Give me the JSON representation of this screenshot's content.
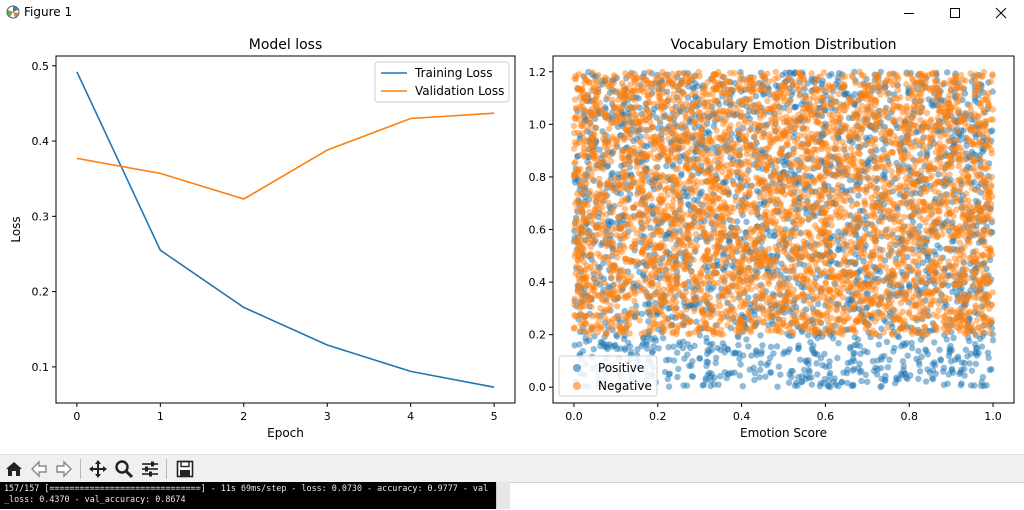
{
  "window": {
    "title": "Figure 1"
  },
  "chart_data": [
    {
      "type": "line",
      "title": "Model loss",
      "xlabel": "Epoch",
      "ylabel": "Loss",
      "x": [
        0,
        1,
        2,
        3,
        4,
        5
      ],
      "xticks": [
        "0",
        "1",
        "2",
        "3",
        "4",
        "5"
      ],
      "yticks": [
        "0.1",
        "0.2",
        "0.3",
        "0.4",
        "0.5"
      ],
      "series": [
        {
          "name": "Training Loss",
          "color": "#1f77b4",
          "values": [
            0.492,
            0.255,
            0.179,
            0.129,
            0.094,
            0.073
          ]
        },
        {
          "name": "Validation Loss",
          "color": "#ff7f0e",
          "values": [
            0.377,
            0.357,
            0.323,
            0.388,
            0.43,
            0.437
          ]
        }
      ],
      "xlim": [
        -0.25,
        5.25
      ],
      "ylim": [
        0.052,
        0.513
      ],
      "legend": "top-right",
      "grid": false
    },
    {
      "type": "scatter",
      "title": "Vocabulary Emotion Distribution",
      "xlabel": "Emotion Score",
      "ylabel": "",
      "xticks": [
        "0.0",
        "0.2",
        "0.4",
        "0.6",
        "0.8",
        "1.0"
      ],
      "yticks": [
        "0.0",
        "0.2",
        "0.4",
        "0.6",
        "0.8",
        "1.0",
        "1.2"
      ],
      "series": [
        {
          "name": "Positive",
          "color": "#1f77b4",
          "x_range": [
            0,
            1
          ],
          "y_range": [
            0,
            1.2
          ]
        },
        {
          "name": "Negative",
          "color": "#ff7f0e",
          "x_range": [
            0,
            1
          ],
          "y_range": [
            0.2,
            1.2
          ]
        }
      ],
      "xlim": [
        -0.05,
        1.05
      ],
      "ylim": [
        -0.06,
        1.26
      ],
      "legend": "bottom-left",
      "grid": false
    }
  ],
  "toolbar": {
    "items": [
      "home-icon",
      "back-icon",
      "forward-icon",
      "pan-icon",
      "zoom-icon",
      "subplots-icon",
      "save-icon"
    ]
  },
  "console": {
    "line1": "157/157 [==============================] - 11s 69ms/step - loss: 0.0730 - accuracy: 0.9777 - val",
    "line2": "_loss: 0.4370 - val_accuracy: 0.8674"
  }
}
